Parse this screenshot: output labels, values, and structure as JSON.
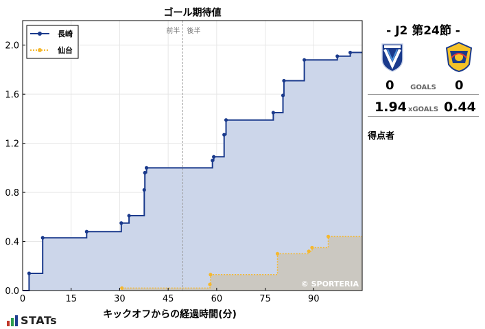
{
  "chart_data": {
    "type": "line",
    "title": "ゴール期待値",
    "xlabel": "キックオフからの経過時間(分)",
    "ylabel": "",
    "x_ticks": [
      "0",
      "15",
      "30",
      "45",
      "60",
      "75",
      "90"
    ],
    "y_ticks": [
      "0.0",
      "0.4",
      "0.8",
      "1.2",
      "1.6",
      "2.0"
    ],
    "xlim": [
      0,
      105
    ],
    "ylim": [
      0,
      2.2
    ],
    "grid": true,
    "legend_position": "top-left",
    "half_marker": {
      "x": 49.5,
      "first_half": "前半",
      "second_half": "後半"
    },
    "watermark": "© SPORTERIA",
    "series": [
      {
        "name": "長崎",
        "color": "#1a3a8c",
        "fill": "#ccd6ea",
        "line_style": "solid",
        "points": [
          [
            2,
            0.14
          ],
          [
            6.2,
            0.43
          ],
          [
            19.8,
            0.48
          ],
          [
            30.5,
            0.55
          ],
          [
            32.9,
            0.61
          ],
          [
            37.6,
            0.82
          ],
          [
            37.8,
            0.96
          ],
          [
            38.3,
            1.0
          ],
          [
            58.7,
            1.06
          ],
          [
            59.1,
            1.09
          ],
          [
            62.3,
            1.27
          ],
          [
            62.9,
            1.39
          ],
          [
            77.5,
            1.45
          ],
          [
            80.5,
            1.59
          ],
          [
            80.8,
            1.71
          ],
          [
            87.1,
            1.88
          ],
          [
            97.3,
            1.91
          ],
          [
            101.3,
            1.94
          ],
          [
            105,
            1.94
          ]
        ]
      },
      {
        "name": "仙台",
        "color": "#f5b82e",
        "fill": "#cbc7bc",
        "line_style": "dotted",
        "points": [
          [
            30.7,
            0.02
          ],
          [
            57.9,
            0.05
          ],
          [
            58.1,
            0.13
          ],
          [
            78.8,
            0.3
          ],
          [
            88.5,
            0.32
          ],
          [
            89.5,
            0.35
          ],
          [
            94.5,
            0.44
          ],
          [
            105,
            0.44
          ]
        ]
      }
    ]
  },
  "match": {
    "title": "-  J2 第24節  -",
    "home_logo": "v-varen-nagasaki-crest-icon",
    "away_logo": "vegalta-sendai-crest-icon",
    "home_goals": "0",
    "away_goals": "0",
    "goals_label": "GOALS",
    "home_xg": "1.94",
    "away_xg": "0.44",
    "xg_label": "xGOALS",
    "scorers_label": "得点者"
  },
  "footer": {
    "logo_text": "STATs",
    "logo_colors": [
      "#c0392b",
      "#2e9e4f",
      "#1f3f8f"
    ]
  }
}
